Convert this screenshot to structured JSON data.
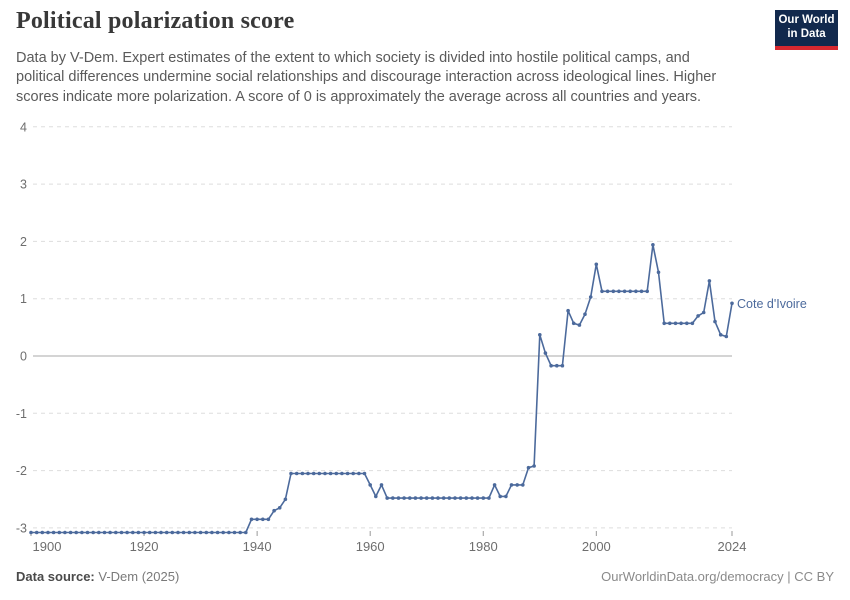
{
  "header": {
    "title": "Political polarization score",
    "subtitle": "Data by V-Dem. Expert estimates of the extent to which society is divided into hostile political camps, and political differences undermine social relationships and discourage interaction across ideological lines. Higher scores indicate more polarization. A score of 0 is approximately the average across all countries and years.",
    "logo": {
      "line1": "Our World",
      "line2": "in Data"
    }
  },
  "footer": {
    "source_label": "Data source:",
    "source_value": " V-Dem (2025)",
    "link": "OurWorldinData.org/democracy | CC BY"
  },
  "colors": {
    "line": "#4C6A9C",
    "grid": "#dddddd",
    "zero_line": "#a8a8a8",
    "tick_mark": "#999999",
    "axis_text": "#6e6e6e",
    "entity_label": "#4C6A9C"
  },
  "chart_data": {
    "type": "line",
    "title": "Political polarization score",
    "entity_label": "Cote d'Ivoire",
    "grid": true,
    "x_range": [
      1900,
      2024
    ],
    "y_range": [
      -3.2,
      4
    ],
    "x_ticks": [
      1900,
      1920,
      1940,
      1960,
      1980,
      2000,
      2024
    ],
    "y_ticks": [
      4,
      3,
      2,
      1,
      0,
      -1,
      -2,
      -3
    ],
    "series": [
      {
        "name": "Cote d'Ivoire",
        "start_year": 1900,
        "values": [
          -3.08,
          -3.08,
          -3.08,
          -3.08,
          -3.08,
          -3.08,
          -3.08,
          -3.08,
          -3.08,
          -3.08,
          -3.08,
          -3.08,
          -3.08,
          -3.08,
          -3.08,
          -3.08,
          -3.08,
          -3.08,
          -3.08,
          -3.08,
          -3.08,
          -3.08,
          -3.08,
          -3.08,
          -3.08,
          -3.08,
          -3.08,
          -3.08,
          -3.08,
          -3.08,
          -3.08,
          -3.08,
          -3.08,
          -3.08,
          -3.08,
          -3.08,
          -3.08,
          -3.08,
          -3.08,
          -2.85,
          -2.85,
          -2.85,
          -2.85,
          -2.7,
          -2.65,
          -2.5,
          -2.05,
          -2.05,
          -2.05,
          -2.05,
          -2.05,
          -2.05,
          -2.05,
          -2.05,
          -2.05,
          -2.05,
          -2.05,
          -2.05,
          -2.05,
          -2.05,
          -2.25,
          -2.45,
          -2.25,
          -2.48,
          -2.48,
          -2.48,
          -2.48,
          -2.48,
          -2.48,
          -2.48,
          -2.48,
          -2.48,
          -2.48,
          -2.48,
          -2.48,
          -2.48,
          -2.48,
          -2.48,
          -2.48,
          -2.48,
          -2.48,
          -2.48,
          -2.25,
          -2.45,
          -2.45,
          -2.25,
          -2.25,
          -2.25,
          -1.95,
          -1.92,
          0.37,
          0.05,
          -0.17,
          -0.17,
          -0.17,
          0.79,
          0.57,
          0.54,
          0.73,
          1.03,
          1.6,
          1.13,
          1.13,
          1.13,
          1.13,
          1.13,
          1.13,
          1.13,
          1.13,
          1.13,
          1.94,
          1.46,
          0.57,
          0.57,
          0.57,
          0.57,
          0.57,
          0.57,
          0.7,
          0.76,
          1.31,
          0.6,
          0.37,
          0.34,
          0.92
        ]
      }
    ]
  }
}
